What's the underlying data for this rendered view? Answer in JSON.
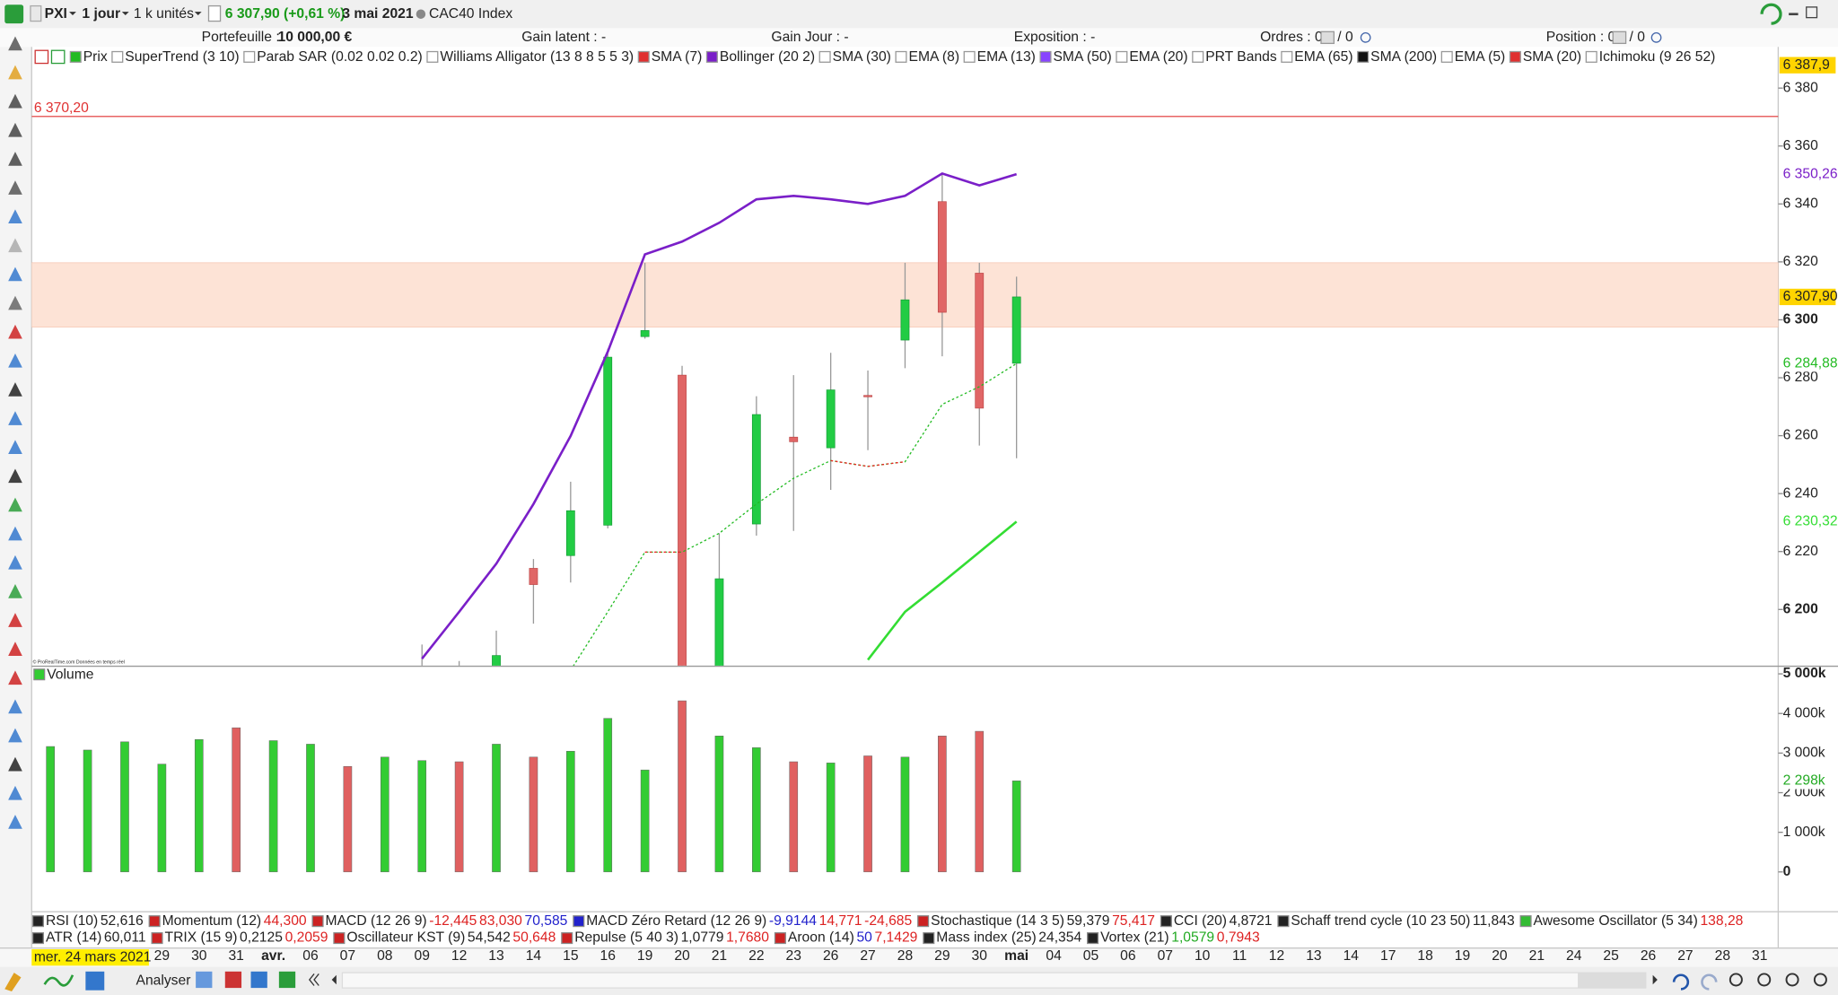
{
  "toolbar": {
    "symbol": "PXI",
    "period": "1 jour",
    "units": "1 k unités",
    "price": "6 307,90 (+0,61 %)",
    "date": "3 mai 2021",
    "name": "CAC40 Index"
  },
  "account": {
    "portfolio_label": "Portefeuille :",
    "portfolio": "10 000,00 €",
    "gain_latent": "Gain latent : -",
    "gain_jour": "Gain Jour : -",
    "exposition": "Exposition : -",
    "ordres": "Ordres : 0",
    "ordres_2": "/ 0",
    "position": "Position : 0",
    "position_2": "/ 0"
  },
  "legend_items": [
    {
      "label": "Prix",
      "color": "#22bb22"
    },
    {
      "label": "SuperTrend (3 10)",
      "color": "#ffffff"
    },
    {
      "label": "Parab SAR (0.02 0.02 0.2)",
      "color": "#ffffff"
    },
    {
      "label": "Williams Alligator (13 8 8 5 5 3)",
      "color": "#ffffff"
    },
    {
      "label": "SMA (7)",
      "color": "#e03030"
    },
    {
      "label": "Bollinger (20 2)",
      "color": "#7a1fc8"
    },
    {
      "label": "SMA (30)",
      "color": "#ffffff"
    },
    {
      "label": "EMA (8)",
      "color": "#ffffff"
    },
    {
      "label": "EMA (13)",
      "color": "#ffffff"
    },
    {
      "label": "SMA (50)",
      "color": "#8844ff"
    },
    {
      "label": "EMA (20)",
      "color": "#ffffff"
    },
    {
      "label": "PRT Bands",
      "color": "#ffffff"
    },
    {
      "label": "EMA (65)",
      "color": "#ffffff"
    },
    {
      "label": "SMA (200)",
      "color": "#111111"
    },
    {
      "label": "EMA (5)",
      "color": "#ffffff"
    },
    {
      "label": "SMA (20)",
      "color": "#e03030"
    },
    {
      "label": "Ichimoku (9 26 52)",
      "color": "#ffffff"
    }
  ],
  "volume_label": "Volume",
  "cursor_date": "mer. 24 mars 2021",
  "copyright": "© ProRealTime.com Données en temps réel",
  "analyse_button": "Analyser",
  "indicator_rows": [
    [
      {
        "name": "RSI (10)",
        "color": "#222222",
        "values": [
          "52,616"
        ],
        "value_colors": [
          "#222222"
        ]
      },
      {
        "name": "Momentum (12)",
        "color": "#cc2222",
        "values": [
          "44,300"
        ],
        "value_colors": [
          "#dd2222"
        ]
      },
      {
        "name": "MACD (12 26 9)",
        "color": "#cc2222",
        "values": [
          "-12,445",
          "83,030",
          "70,585"
        ],
        "value_colors": [
          "#dd2222",
          "#dd2222",
          "#2222cc"
        ]
      },
      {
        "name": "MACD Zéro Retard (12 26 9)",
        "color": "#2222cc",
        "values": [
          "-9,9144",
          "14,771",
          "-24,685"
        ],
        "value_colors": [
          "#2222cc",
          "#dd2222",
          "#dd2222"
        ]
      },
      {
        "name": "Stochastique (14 3 5)",
        "color": "#cc2222",
        "values": [
          "59,379",
          "75,417"
        ],
        "value_colors": [
          "#222222",
          "#dd2222"
        ]
      },
      {
        "name": "CCI (20)",
        "color": "#222222",
        "values": [
          "4,8721"
        ],
        "value_colors": [
          "#222222"
        ]
      },
      {
        "name": "Schaff trend cycle (10 23 50)",
        "color": "#222222",
        "values": [
          "11,843"
        ],
        "value_colors": [
          "#222222"
        ]
      },
      {
        "name": "Awesome Oscillator (5 34)",
        "color": "#33bb33",
        "values": [
          "138,28"
        ],
        "value_colors": [
          "#dd2222"
        ]
      }
    ],
    [
      {
        "name": "ATR (14)",
        "color": "#222222",
        "values": [
          "60,011"
        ],
        "value_colors": [
          "#222222"
        ]
      },
      {
        "name": "TRIX (15 9)",
        "color": "#cc2222",
        "values": [
          "0,2125",
          "0,2059"
        ],
        "value_colors": [
          "#222222",
          "#dd2222"
        ]
      },
      {
        "name": "Oscillateur KST (9)",
        "color": "#cc2222",
        "values": [
          "54,542",
          "50,648"
        ],
        "value_colors": [
          "#222222",
          "#dd2222"
        ]
      },
      {
        "name": "Repulse (5 40 3)",
        "color": "#cc2222",
        "values": [
          "1,0779",
          "1,7680"
        ],
        "value_colors": [
          "#222222",
          "#dd2222"
        ]
      },
      {
        "name": "Aroon (14)",
        "color": "#cc2222",
        "values": [
          "50",
          "7,1429"
        ],
        "value_colors": [
          "#2222cc",
          "#dd2222"
        ]
      },
      {
        "name": "Mass index (25)",
        "color": "#222222",
        "values": [
          "24,354"
        ],
        "value_colors": [
          "#222222"
        ]
      },
      {
        "name": "Vortex (21)",
        "color": "#222222",
        "values": [
          "1,0579",
          "0,7943"
        ],
        "value_colors": [
          "#22aa22",
          "#dd2222"
        ]
      }
    ]
  ],
  "chart_data": [
    {
      "type": "candlestick",
      "categories": [
        null,
        null,
        null,
        "29",
        "30",
        "31",
        "avr.",
        "06",
        "07",
        "08",
        "09",
        "12",
        "13",
        "14",
        "15",
        "16",
        "19",
        "20",
        "21",
        "22",
        "23",
        "26",
        "27",
        "28",
        "29",
        "30",
        "mai",
        "04",
        "05",
        "06",
        "07",
        "10",
        "11",
        "12",
        "13",
        "14",
        "17",
        "18",
        "19",
        "20",
        "21",
        "24",
        "25",
        "26",
        "27",
        "28",
        "31"
      ],
      "open": [
        null,
        null,
        null,
        null,
        null,
        null,
        null,
        null,
        null,
        null,
        6160,
        6165,
        6165,
        6214.2,
        6218.6,
        6229.1,
        6294.2,
        6280.9,
        6175,
        6229.5,
        6259.5,
        6255.8,
        6273.9,
        6293,
        6340.8,
        6316.1,
        6285,
        null,
        null,
        null,
        null,
        null,
        null,
        null,
        null,
        null,
        null,
        null,
        null,
        null,
        null,
        null,
        null,
        null,
        null,
        null,
        null
      ],
      "high": [
        null,
        null,
        null,
        null,
        null,
        null,
        null,
        null,
        null,
        null,
        6187.9,
        6182.2,
        6192.7,
        6217.4,
        6244.1,
        6290,
        6319.7,
        6284.1,
        6226.3,
        6273.6,
        6280.9,
        6288.6,
        6282.5,
        6319.7,
        6350.5,
        6319.7,
        6314.9,
        null,
        null,
        null,
        null,
        null,
        null,
        null,
        null,
        null,
        null,
        null,
        null,
        null,
        null,
        null,
        null,
        null,
        null,
        null,
        null
      ],
      "low": [
        null,
        null,
        null,
        null,
        null,
        null,
        null,
        null,
        null,
        null,
        6150,
        6150,
        6160,
        6195.1,
        6209.3,
        6228,
        6293.5,
        6150,
        6160,
        6225.5,
        6227.1,
        6241.3,
        6255,
        6283.3,
        6287.4,
        6256.6,
        6252.2,
        null,
        null,
        null,
        null,
        null,
        null,
        null,
        null,
        null,
        null,
        null,
        null,
        null,
        null,
        null,
        null,
        null,
        null,
        null,
        null
      ],
      "close": [
        null,
        null,
        null,
        null,
        null,
        null,
        null,
        null,
        null,
        null,
        6169.4,
        6161.7,
        6184.1,
        6208.6,
        6234.1,
        6287.1,
        6296.3,
        6165.1,
        6210.6,
        6267.3,
        6257.9,
        6275.8,
        6273.6,
        6306.9,
        6302.6,
        6269.5,
        6307.9,
        null,
        null,
        null,
        null,
        null,
        null,
        null,
        null,
        null,
        null,
        null,
        null,
        null,
        null,
        null,
        null,
        null,
        null,
        null,
        null
      ],
      "close_labels": [
        null,
        null,
        null,
        null,
        null,
        null,
        null,
        null,
        null,
        null,
        null,
        null,
        null,
        null,
        null,
        null,
        null,
        null,
        null,
        null,
        null,
        null,
        null,
        null,
        null,
        null,
        "6 307,90",
        null,
        null,
        null,
        null,
        null,
        null,
        null,
        null,
        null,
        null,
        null,
        null,
        null,
        null,
        null,
        null,
        null,
        null,
        null,
        null
      ],
      "up_color": "#22cc44",
      "down_color": "#e06666",
      "series": [
        {
          "color": "#7a1fc8",
          "dashed": false,
          "values": [
            null,
            null,
            null,
            null,
            null,
            null,
            null,
            null,
            null,
            null,
            6183.0,
            6199.2,
            6215.8,
            6236.4,
            6259.9,
            6289.0,
            6322.6,
            6327.0,
            6333.5,
            6341.6,
            6342.8,
            6341.6,
            6340.0,
            6342.8,
            6350.5,
            6346.4,
            6350.26,
            null,
            null,
            null,
            null,
            null,
            null,
            null,
            null,
            null,
            null,
            null,
            null,
            null,
            null,
            null,
            null,
            null,
            null,
            null,
            null
          ],
          "value_labels": [
            null,
            null,
            null,
            null,
            null,
            null,
            null,
            null,
            null,
            null,
            null,
            null,
            null,
            null,
            null,
            null,
            null,
            null,
            null,
            null,
            null,
            null,
            null,
            null,
            null,
            null,
            "6 350,26",
            null,
            null,
            null,
            null,
            null,
            null,
            null,
            null,
            null,
            null,
            null,
            null,
            null,
            null,
            null,
            null,
            null,
            null,
            null,
            null
          ]
        },
        {
          "color": "#22bb22",
          "dashed": true,
          "values": [
            null,
            null,
            null,
            null,
            null,
            null,
            null,
            null,
            null,
            null,
            null,
            null,
            null,
            null,
            6179,
            6199.2,
            6219.8,
            6219.8,
            6226.3,
            6236.4,
            6245.3,
            6251.4,
            6249.4,
            6251.0,
            6270.8,
            6276.9,
            6284.88,
            null,
            null,
            null,
            null,
            null,
            null,
            null,
            null,
            null,
            null,
            null,
            null,
            null,
            null,
            null,
            null,
            null,
            null,
            null,
            null
          ],
          "value_labels": [
            null,
            null,
            null,
            null,
            null,
            null,
            null,
            null,
            null,
            null,
            null,
            null,
            null,
            null,
            null,
            null,
            null,
            null,
            null,
            null,
            null,
            null,
            null,
            null,
            null,
            null,
            "6 284,88",
            null,
            null,
            null,
            null,
            null,
            null,
            null,
            null,
            null,
            null,
            null,
            null,
            null,
            null,
            null,
            null,
            null,
            null,
            null,
            null
          ]
        },
        {
          "color": "#ee2222",
          "dashed": true,
          "values": [
            null,
            null,
            null,
            null,
            null,
            null,
            null,
            null,
            null,
            null,
            null,
            null,
            null,
            null,
            null,
            null,
            6219.8,
            6219.8,
            null,
            null,
            null,
            6251.4,
            6249.4,
            6251.0,
            null,
            null,
            null,
            null,
            null,
            null,
            null,
            null,
            null,
            null,
            null,
            null,
            null,
            null,
            null,
            null,
            null,
            null,
            null,
            null,
            null,
            null,
            null
          ]
        },
        {
          "color": "#33dd33",
          "dashed": false,
          "values": [
            null,
            null,
            null,
            null,
            null,
            null,
            null,
            null,
            null,
            null,
            null,
            null,
            null,
            null,
            null,
            null,
            null,
            null,
            null,
            null,
            null,
            null,
            6182.6,
            6199.2,
            6209.3,
            6219.8,
            6230.32,
            null,
            null,
            null,
            null,
            null,
            null,
            null,
            null,
            null,
            null,
            null,
            null,
            null,
            null,
            null,
            null,
            null,
            null,
            null,
            null
          ],
          "value_labels": [
            null,
            null,
            null,
            null,
            null,
            null,
            null,
            null,
            null,
            null,
            null,
            null,
            null,
            null,
            null,
            null,
            null,
            null,
            null,
            null,
            null,
            null,
            null,
            null,
            null,
            null,
            "6 230,32",
            null,
            null,
            null,
            null,
            null,
            null,
            null,
            null,
            null,
            null,
            null,
            null,
            null,
            null,
            null,
            null,
            null,
            null,
            null,
            null
          ]
        }
      ],
      "ylim": [
        6180.6,
        6393.4
      ],
      "yticks": [
        {
          "value": 6200,
          "label": "6 200"
        },
        {
          "value": 6220,
          "label": "6 220"
        },
        {
          "value": 6240,
          "label": "6 240"
        },
        {
          "value": 6260,
          "label": "6 260"
        },
        {
          "value": 6280,
          "label": "6 280"
        },
        {
          "value": 6300,
          "label": "6 300"
        },
        {
          "value": 6320,
          "label": "6 320"
        },
        {
          "value": 6340,
          "label": "6 340"
        },
        {
          "value": 6360,
          "label": "6 360"
        },
        {
          "value": 6380,
          "label": "6 380"
        }
      ],
      "zone": [
        6297.5,
        6319.7
      ],
      "zone_color": "#fde3d6",
      "reference": {
        "value": 6370.2,
        "label": "6 370,20",
        "color": "#e03030"
      },
      "top_label": {
        "value": 6387.9,
        "label": "6 387,9"
      }
    },
    {
      "type": "bar",
      "values": [
        3166,
        3077,
        3284,
        2722,
        3343,
        3639,
        3314,
        3225,
        2663,
        2899,
        2811,
        2781,
        3225,
        2899,
        3047,
        3876,
        2574,
        4320,
        3432,
        3136,
        2781,
        2751,
        2929,
        2899,
        3432,
        3550,
        2298,
        null,
        null,
        null,
        null,
        null,
        null,
        null,
        null,
        null,
        null,
        null,
        null,
        null,
        null,
        null,
        null,
        null,
        null,
        null,
        null
      ],
      "value_labels": [
        null,
        null,
        null,
        null,
        null,
        null,
        null,
        null,
        null,
        null,
        null,
        null,
        null,
        null,
        null,
        null,
        null,
        null,
        null,
        null,
        null,
        null,
        null,
        null,
        null,
        null,
        "2 298k",
        null,
        null,
        null,
        null,
        null,
        null,
        null,
        null,
        null,
        null,
        null,
        null,
        null,
        null,
        null,
        null,
        null,
        null,
        null,
        null
      ],
      "colors": [
        "#33cc33",
        "#33cc33",
        "#33cc33",
        "#33cc33",
        "#33cc33",
        "#e06060",
        "#33cc33",
        "#33cc33",
        "#e06060",
        "#33cc33",
        "#33cc33",
        "#e06060",
        "#33cc33",
        "#e06060",
        "#33cc33",
        "#33cc33",
        "#33cc33",
        "#e06060",
        "#33cc33",
        "#33cc33",
        "#e06060",
        "#33cc33",
        "#e06060",
        "#33cc33",
        "#e06060",
        "#e06060",
        "#33cc33",
        null,
        null,
        null,
        null,
        null,
        null,
        null,
        null,
        null,
        null,
        null,
        null,
        null,
        null,
        null,
        null,
        null,
        null,
        null,
        null
      ],
      "ylim": [
        0,
        5207
      ],
      "yticks": [
        0,
        {
          "value": 1000,
          "label": "1 000k"
        },
        {
          "value": 2000,
          "label": "2 000k"
        },
        {
          "value": 3000,
          "label": "3 000k"
        },
        {
          "value": 4000,
          "label": "4 000k"
        },
        {
          "value": 5000,
          "label": "5 000k"
        }
      ]
    }
  ]
}
